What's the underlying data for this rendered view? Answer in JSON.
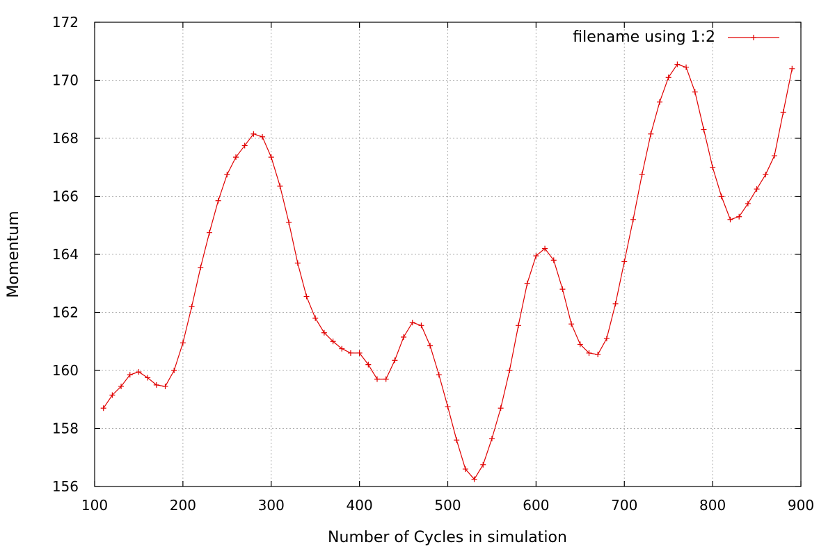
{
  "chart_data": {
    "type": "line",
    "xlabel": "Number of Cycles in simulation",
    "ylabel": "Momentum",
    "xlim": [
      100,
      900
    ],
    "ylim": [
      156,
      172
    ],
    "xticks": [
      "100",
      "200",
      "300",
      "400",
      "500",
      "600",
      "700",
      "800",
      "900"
    ],
    "yticks": [
      "156",
      "158",
      "160",
      "162",
      "164",
      "166",
      "168",
      "170",
      "172"
    ],
    "grid": true,
    "legend_position": "top-right",
    "series": [
      {
        "name": "filename using 1:2",
        "color": "#e00000",
        "marker": "plus",
        "x": [
          110,
          120,
          130,
          140,
          150,
          160,
          170,
          180,
          190,
          200,
          210,
          220,
          230,
          240,
          250,
          260,
          270,
          280,
          290,
          300,
          310,
          320,
          330,
          340,
          350,
          360,
          370,
          380,
          390,
          400,
          410,
          420,
          430,
          440,
          450,
          460,
          470,
          480,
          490,
          500,
          510,
          520,
          530,
          540,
          550,
          560,
          570,
          580,
          590,
          600,
          610,
          620,
          630,
          640,
          650,
          660,
          670,
          680,
          690,
          700,
          710,
          720,
          730,
          740,
          750,
          760,
          770,
          780,
          790,
          800,
          810,
          820,
          830,
          840,
          850,
          860,
          870,
          880,
          890
        ],
        "y": [
          158.7,
          159.15,
          159.45,
          159.85,
          159.95,
          159.75,
          159.5,
          159.45,
          160.0,
          160.95,
          162.2,
          163.55,
          164.75,
          165.85,
          166.75,
          167.35,
          167.75,
          168.15,
          168.05,
          167.35,
          166.35,
          165.1,
          163.7,
          162.55,
          161.8,
          161.3,
          161.0,
          160.75,
          160.6,
          160.6,
          160.2,
          159.7,
          159.7,
          160.35,
          161.15,
          161.65,
          161.55,
          160.85,
          159.85,
          158.75,
          157.6,
          156.6,
          156.25,
          156.75,
          157.65,
          158.7,
          160.0,
          161.55,
          163.0,
          163.95,
          164.2,
          163.8,
          162.8,
          161.6,
          160.9,
          160.6,
          160.55,
          161.1,
          162.3,
          163.75,
          165.2,
          166.75,
          168.15,
          169.25,
          170.1,
          170.55,
          170.45,
          169.6,
          168.3,
          167.0,
          166.0,
          165.2,
          165.3,
          165.75,
          166.25,
          166.75,
          167.4,
          168.9,
          170.4
        ]
      }
    ]
  }
}
